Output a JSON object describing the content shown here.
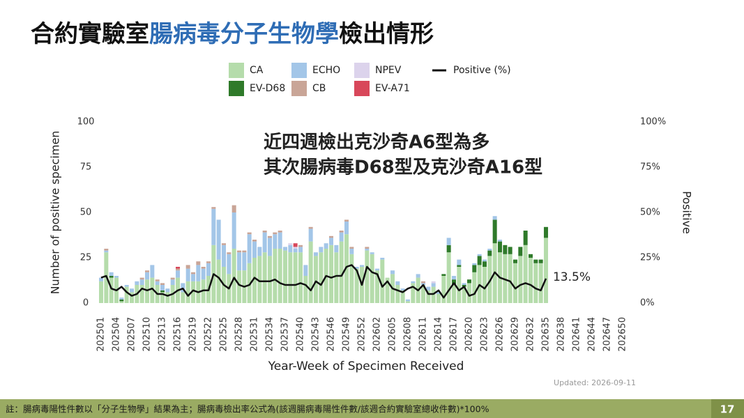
{
  "title_parts": [
    "合約實驗室",
    "腸病毒分子生物學",
    "檢出情形"
  ],
  "chart_data": {
    "type": "bar",
    "stacked": true,
    "ylabel": "Number of positive specimen",
    "xlabel": "Year-Week of Specimen Received",
    "y2label": "Positive",
    "ylim": [
      0,
      100
    ],
    "yticks": [
      0,
      25,
      50,
      75,
      100
    ],
    "y2lim": [
      0,
      100
    ],
    "y2ticks": [
      {
        "value": 0,
        "label": "0%"
      },
      {
        "value": 25,
        "label": "25%"
      },
      {
        "value": 50,
        "label": "50%"
      },
      {
        "value": 75,
        "label": "75%"
      },
      {
        "value": 100,
        "label": "100%"
      }
    ],
    "annotation": [
      "近四週檢出克沙奇A6型為多",
      "其次腸病毒D68型及克沙奇A16型"
    ],
    "updated": "Updated: 2026-09-11",
    "categories": [
      "202501",
      null,
      null,
      "202504",
      null,
      null,
      "202507",
      null,
      null,
      "202510",
      null,
      null,
      "202513",
      null,
      null,
      "202516",
      null,
      null,
      "202519",
      null,
      null,
      "202522",
      null,
      null,
      "202525",
      null,
      null,
      "202528",
      null,
      null,
      "202531",
      null,
      null,
      "202534",
      null,
      null,
      "202537",
      null,
      null,
      "202540",
      null,
      null,
      "202543",
      null,
      null,
      "202546",
      null,
      null,
      "202549",
      null,
      null,
      "202552",
      null,
      null,
      "202602",
      null,
      null,
      "202605",
      null,
      null,
      "202608",
      null,
      null,
      "202611",
      null,
      null,
      "202614",
      null,
      null,
      "202617",
      null,
      null,
      "202620",
      null,
      null,
      "202623",
      null,
      null,
      "202626",
      null,
      null,
      "202629",
      null,
      null,
      "202632",
      null,
      null,
      "202635",
      null,
      null,
      "202638",
      null,
      null,
      "202641",
      null,
      null,
      "202644",
      null,
      null,
      "202647",
      null,
      null,
      "202650",
      null
    ],
    "series": [
      {
        "name": "CA",
        "color": "#b5dcab",
        "values": [
          12,
          28,
          14,
          14,
          1,
          9,
          6,
          10,
          10,
          13,
          14,
          10,
          6,
          6,
          10,
          14,
          6,
          12,
          12,
          12,
          13,
          15,
          32,
          24,
          20,
          16,
          30,
          18,
          18,
          22,
          25,
          26,
          28,
          26,
          30,
          30,
          29,
          28,
          28,
          28,
          15,
          34,
          26,
          28,
          30,
          32,
          28,
          34,
          38,
          27,
          19,
          20,
          29,
          27,
          18,
          24,
          14,
          16,
          10,
          7,
          1,
          11,
          14,
          10,
          7,
          9,
          5,
          15,
          28,
          10,
          20,
          9,
          11,
          17,
          21,
          20,
          26,
          33,
          28,
          27,
          27,
          22,
          26,
          32,
          25,
          22,
          22,
          36,
          null,
          null,
          null,
          null,
          null,
          null,
          null,
          null,
          null,
          null,
          null,
          null,
          null,
          null,
          null,
          null
        ]
      },
      {
        "name": "EV-D68",
        "color": "#2f7a2a",
        "values": [
          0,
          0,
          1,
          0,
          1,
          0,
          0,
          0,
          0,
          0,
          0,
          0,
          1,
          0,
          0,
          0,
          0,
          0,
          0,
          0,
          0,
          0,
          0,
          0,
          0,
          0,
          0,
          0,
          0,
          0,
          0,
          0,
          0,
          0,
          0,
          0,
          0,
          0,
          0,
          0,
          0,
          0,
          0,
          0,
          0,
          0,
          0,
          0,
          0,
          0,
          0,
          0,
          0,
          0,
          0,
          0,
          0,
          0,
          0,
          0,
          0,
          0,
          0,
          0,
          0,
          0,
          0,
          1,
          4,
          3,
          1,
          1,
          2,
          4,
          5,
          3,
          3,
          13,
          6,
          5,
          4,
          2,
          5,
          8,
          2,
          2,
          2,
          6,
          null,
          null,
          null,
          null,
          null,
          null,
          null,
          null,
          null,
          null,
          null,
          null,
          null,
          null,
          null,
          null
        ]
      },
      {
        "name": "ECHO",
        "color": "#a3c6e8",
        "values": [
          2,
          1,
          2,
          1,
          1,
          1,
          2,
          2,
          3,
          4,
          7,
          2,
          3,
          2,
          3,
          4,
          5,
          7,
          4,
          9,
          6,
          7,
          20,
          22,
          12,
          11,
          20,
          10,
          10,
          16,
          9,
          5,
          11,
          10,
          8,
          9,
          2,
          4,
          2,
          3,
          6,
          7,
          2,
          3,
          3,
          4,
          4,
          5,
          7,
          3,
          1,
          1,
          1,
          1,
          1,
          1,
          0,
          2,
          2,
          1,
          1,
          1,
          2,
          1,
          2,
          2,
          1,
          0,
          4,
          2,
          3,
          1,
          0,
          1,
          1,
          1,
          1,
          2,
          1,
          0,
          0,
          0,
          0,
          0,
          0,
          0,
          0,
          0,
          null,
          null,
          null,
          null,
          null,
          null,
          null,
          null,
          null,
          null,
          null,
          null,
          null,
          null,
          null,
          null
        ]
      },
      {
        "name": "CB",
        "color": "#c9a597",
        "values": [
          0,
          1,
          0,
          0,
          0,
          0,
          0,
          0,
          1,
          1,
          0,
          1,
          1,
          0,
          1,
          1,
          0,
          2,
          1,
          2,
          1,
          1,
          1,
          0,
          1,
          1,
          4,
          1,
          1,
          1,
          1,
          0,
          1,
          1,
          1,
          1,
          0,
          0,
          0,
          1,
          0,
          1,
          0,
          0,
          0,
          1,
          0,
          1,
          1,
          1,
          0,
          0,
          1,
          0,
          0,
          0,
          0,
          0,
          0,
          0,
          0,
          0,
          0,
          1,
          0,
          0,
          0,
          0,
          0,
          0,
          0,
          0,
          0,
          0,
          0,
          0,
          0,
          0,
          0,
          0,
          0,
          0,
          0,
          0,
          0,
          0,
          0,
          0,
          null,
          null,
          null,
          null,
          null,
          null,
          null,
          null,
          null,
          null,
          null,
          null,
          null,
          null,
          null,
          null
        ]
      },
      {
        "name": "NPEV",
        "color": "#dcd3ec",
        "values": [
          0,
          0,
          0,
          0,
          0,
          0,
          0,
          0,
          0,
          0,
          0,
          0,
          0,
          0,
          0,
          0,
          0,
          0,
          0,
          0,
          0,
          0,
          0,
          0,
          0,
          0,
          0,
          0,
          0,
          0,
          0,
          0,
          0,
          0,
          0,
          0,
          0,
          1,
          1,
          0,
          0,
          0,
          0,
          0,
          0,
          0,
          0,
          0,
          0,
          0,
          0,
          0,
          0,
          0,
          0,
          0,
          0,
          0,
          0,
          0,
          0,
          0,
          0,
          0,
          0,
          1,
          0,
          0,
          0,
          0,
          0,
          0,
          0,
          0,
          0,
          0,
          0,
          0,
          0,
          0,
          0,
          0,
          0,
          0,
          0,
          0,
          0,
          0,
          null,
          null,
          null,
          null,
          null,
          null,
          null,
          null,
          null,
          null,
          null,
          null,
          null,
          null,
          null,
          null
        ]
      },
      {
        "name": "EV-A71",
        "color": "#d8475a",
        "values": [
          0,
          0,
          0,
          0,
          0,
          0,
          0,
          0,
          0,
          0,
          0,
          0,
          0,
          0,
          0,
          1,
          0,
          0,
          0,
          0,
          0,
          0,
          0,
          0,
          0,
          0,
          0,
          0,
          0,
          0,
          0,
          0,
          0,
          0,
          0,
          0,
          0,
          0,
          2,
          0,
          0,
          0,
          0,
          0,
          0,
          0,
          0,
          0,
          0,
          0,
          0,
          0,
          0,
          0,
          0,
          0,
          0,
          0,
          0,
          0,
          0,
          0,
          0,
          0,
          0,
          0,
          0,
          0,
          0,
          0,
          0,
          0,
          0,
          0,
          0,
          0,
          0,
          0,
          0,
          0,
          0,
          0,
          0,
          0,
          0,
          0,
          0,
          0,
          null,
          null,
          null,
          null,
          null,
          null,
          null,
          null,
          null,
          null,
          null,
          null,
          null,
          null,
          null,
          null
        ]
      },
      {
        "name": "Positive (%)",
        "type": "line",
        "axis": "y2",
        "color": "#111111",
        "values": [
          14,
          15,
          8,
          7,
          9,
          6,
          4,
          5,
          8,
          7,
          8,
          5,
          5,
          4,
          5,
          7,
          8,
          4,
          7,
          6,
          7,
          7,
          16,
          14,
          10,
          8,
          14,
          10,
          9,
          10,
          14,
          12,
          12,
          12,
          13,
          11,
          10,
          10,
          10,
          11,
          10,
          7,
          12,
          10,
          15,
          14,
          15,
          15,
          20,
          21,
          18,
          10,
          20,
          17,
          16,
          9,
          12,
          8,
          7,
          6,
          8,
          9,
          7,
          10,
          5,
          5,
          7,
          3,
          7,
          11,
          7,
          9,
          4,
          5,
          10,
          8,
          12,
          17,
          14,
          13,
          12,
          8,
          10,
          11,
          10,
          8,
          7,
          13.5,
          null,
          null,
          null,
          null,
          null,
          null,
          null,
          null,
          null,
          null,
          null,
          null,
          null,
          null,
          null,
          null
        ],
        "value_labels": [
          null,
          null,
          null,
          null,
          null,
          null,
          null,
          null,
          null,
          null,
          null,
          null,
          null,
          null,
          null,
          null,
          null,
          null,
          null,
          null,
          null,
          null,
          null,
          null,
          null,
          null,
          null,
          null,
          null,
          null,
          null,
          null,
          null,
          null,
          null,
          null,
          null,
          null,
          null,
          null,
          null,
          null,
          null,
          null,
          null,
          null,
          null,
          null,
          null,
          null,
          null,
          null,
          null,
          null,
          null,
          null,
          null,
          null,
          null,
          null,
          null,
          null,
          null,
          null,
          null,
          null,
          null,
          null,
          null,
          null,
          null,
          null,
          null,
          null,
          null,
          null,
          null,
          null,
          null,
          null,
          null,
          null,
          null,
          null,
          null,
          null,
          null,
          "13.5%",
          null,
          null,
          null,
          null,
          null,
          null,
          null,
          null,
          null,
          null,
          null,
          null,
          null,
          null,
          null,
          null
        ]
      }
    ]
  },
  "footer": {
    "note": "註：腸病毒陽性件數以「分子生物學」結果為主；腸病毒檢出率公式為(該週腸病毒陽性件數/該週合約實驗室總收件數)*100%",
    "page": "17"
  }
}
